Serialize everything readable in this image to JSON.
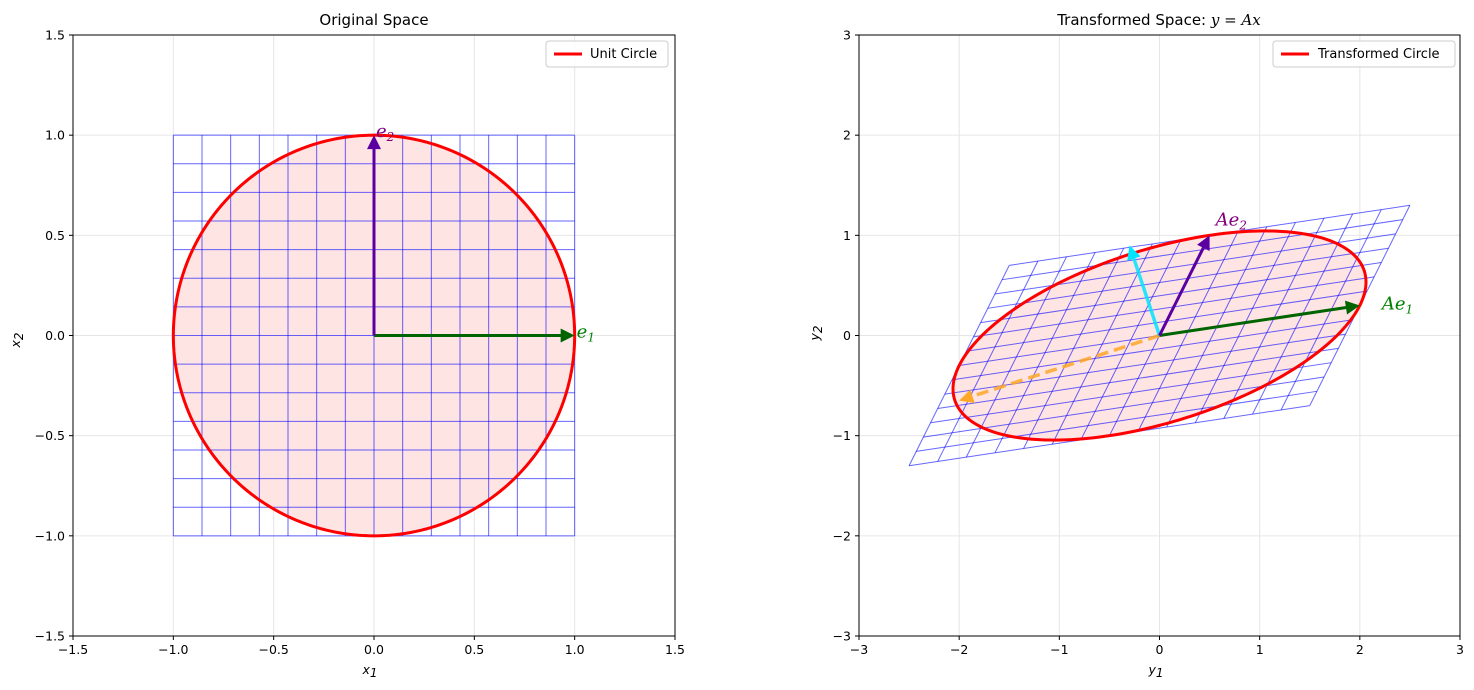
{
  "chart_data": [
    {
      "type": "line",
      "title": "Original Space",
      "xlabel_main": "x",
      "xlabel_sub": "1",
      "ylabel_main": "x",
      "ylabel_sub": "2",
      "xlim": [
        -1.5,
        1.5
      ],
      "ylim": [
        -1.5,
        1.5
      ],
      "xticks": [
        -1.5,
        -1.0,
        -0.5,
        0.0,
        0.5,
        1.0,
        1.5
      ],
      "yticks": [
        -1.5,
        -1.0,
        -0.5,
        0.0,
        0.5,
        1.0,
        1.5
      ],
      "xtick_labels": [
        "−1.5",
        "−1.0",
        "−0.5",
        "0.0",
        "0.5",
        "1.0",
        "1.5"
      ],
      "ytick_labels": [
        "−1.5",
        "−1.0",
        "−0.5",
        "0.0",
        "0.5",
        "1.0",
        "1.5"
      ],
      "grid": true,
      "legend": {
        "entry": "Unit Circle",
        "placement": "top-right"
      },
      "mesh": {
        "range": [
          -1,
          1
        ],
        "lines": 15
      },
      "circle": {
        "radius": 1,
        "color": "#ff0000",
        "fill": "#ffe4e4"
      },
      "vectors": [
        {
          "name": "e1",
          "label_main": "e",
          "label_sub": "1",
          "x": 1,
          "y": 0,
          "color": "#006400",
          "label_color": "#008000"
        },
        {
          "name": "e2",
          "label_main": "e",
          "label_sub": "2",
          "x": 0,
          "y": 1,
          "color": "#5b00a0",
          "label_color": "#800080"
        }
      ]
    },
    {
      "type": "line",
      "title_text": "Transformed Space: ",
      "title_math": "y = Ax",
      "xlabel_main": "y",
      "xlabel_sub": "1",
      "ylabel_main": "y",
      "ylabel_sub": "2",
      "xlim": [
        -3,
        3
      ],
      "ylim": [
        -3,
        3
      ],
      "xticks": [
        -3,
        -2,
        -1,
        0,
        1,
        2,
        3
      ],
      "yticks": [
        -3,
        -2,
        -1,
        0,
        1,
        2,
        3
      ],
      "xtick_labels": [
        "−3",
        "−2",
        "−1",
        "0",
        "1",
        "2",
        "3"
      ],
      "ytick_labels": [
        "−3",
        "−2",
        "−1",
        "0",
        "1",
        "2",
        "3"
      ],
      "grid": true,
      "legend": {
        "entry": "Transformed Circle",
        "placement": "top-right"
      },
      "matrix": [
        [
          2,
          0.5
        ],
        [
          0.3,
          1
        ]
      ],
      "mesh": {
        "range": [
          -1,
          1
        ],
        "lines": 15
      },
      "ellipse": {
        "color": "#ff0000",
        "fill": "#ffe4e4"
      },
      "vectors": [
        {
          "name": "Ae1",
          "label_main": "Ae",
          "label_sub": "1",
          "x": 2,
          "y": 0.3,
          "color": "#006400",
          "label_color": "#008000"
        },
        {
          "name": "Ae2",
          "label_main": "Ae",
          "label_sub": "2",
          "x": 0.5,
          "y": 1,
          "color": "#5b00a0",
          "label_color": "#800080"
        }
      ],
      "eigenvectors": [
        {
          "name": "eigen-major",
          "x": -2.0,
          "y": -0.65,
          "color": "#ffa726",
          "style": "dashed"
        },
        {
          "name": "eigen-minor",
          "x": -0.3,
          "y": 0.9,
          "color": "#00e5ff",
          "style": "solid"
        }
      ]
    }
  ]
}
